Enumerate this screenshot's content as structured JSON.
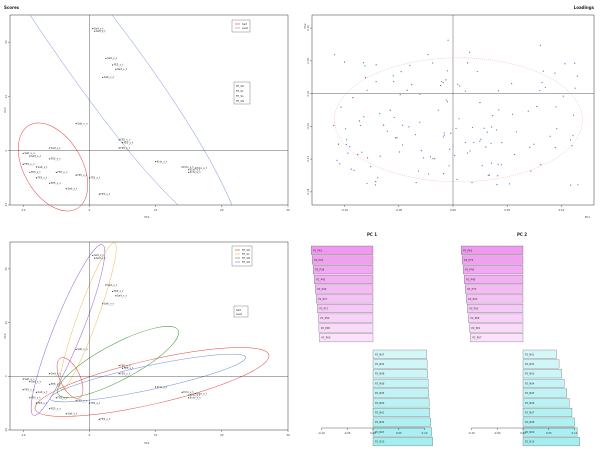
{
  "panels": {
    "scores": {
      "title": "Scores",
      "xlabel": "PC1",
      "ylabel": "PC2",
      "xticks": [
        "-10",
        "0",
        "10",
        "20",
        "30"
      ],
      "yticks": [
        "-10",
        "0",
        "10",
        "20"
      ],
      "legend_lines": [
        "Salt",
        "seed"
      ],
      "legend_points": [
        "FE_SD",
        "FE_SL",
        "FE_SL",
        "FE_SN"
      ]
    },
    "loadings": {
      "title": "Loadings",
      "xlabel": "PC1",
      "ylabel": "PC2",
      "xticks": [
        "-0.10",
        "-0.05",
        "0.00",
        "0.05",
        "0.10"
      ],
      "yticks": [
        "-0.15",
        "-0.10",
        "-0.05",
        "0.00",
        "0.05",
        "0.10"
      ]
    },
    "scores2": {
      "xlabel": "PC1",
      "ylabel": "PC2",
      "xticks": [
        "-10",
        "0",
        "10",
        "20",
        "30"
      ],
      "yticks": [
        "-10",
        "0",
        "10",
        "20"
      ],
      "legend_lines": [
        "FE_SD",
        "FE_SL",
        "FE_SN",
        "FE_SD"
      ],
      "legend_points": [
        "Salt",
        "seed"
      ]
    },
    "pc1_bars": {
      "title": "PC 1",
      "xticks": [
        "-0.10",
        "-0.05",
        "0.00",
        "0.05",
        "0.10"
      ]
    },
    "pc2_bars": {
      "title": "PC 2",
      "xticks": [
        "-0.10",
        "-0.05",
        "0.00",
        "0.05",
        "0.10"
      ]
    }
  },
  "colors": {
    "axis": "#333333",
    "red": "#e3413f",
    "blue": "#6f8fd8",
    "purple": "#9466d6",
    "orange": "#f0b85a",
    "green": "#3c9a3c",
    "label_blue": "#4f77d4",
    "label_red": "#c03535",
    "bar_pink": "#ee99ee",
    "bar_cyan": "#a4eef0"
  },
  "chart_data": [
    {
      "type": "scatter",
      "title": "Scores",
      "xlabel": "PC1",
      "ylabel": "PC2",
      "xlim": [
        -12,
        30
      ],
      "ylim": [
        -10,
        25
      ],
      "points": [
        {
          "x": 0.5,
          "y": 22.5,
          "label": "Salt_s_t"
        },
        {
          "x": 0.8,
          "y": 22.0,
          "label": "Salt_s_t"
        },
        {
          "x": 2.5,
          "y": 17.0,
          "label": "Salt_s_o"
        },
        {
          "x": 3.5,
          "y": 15.8,
          "label": "FE5_s_t"
        },
        {
          "x": 4.0,
          "y": 15.0,
          "label": "Salt_s_t"
        },
        {
          "x": 2.0,
          "y": 13.5,
          "label": "Salt_o_o"
        },
        {
          "x": -2.0,
          "y": 5.0,
          "label": "Salt_o_o"
        },
        {
          "x": 4.5,
          "y": 2.0,
          "label": "FE5_s_o"
        },
        {
          "x": 5.0,
          "y": 1.5,
          "label": "FE5_s_t"
        },
        {
          "x": 4.5,
          "y": 0.5,
          "label": "FE5_s_t"
        },
        {
          "x": -6.0,
          "y": 0.5,
          "label": "Salt_s_t"
        },
        {
          "x": -10.0,
          "y": -0.5,
          "label": "Salt_s_o"
        },
        {
          "x": -9.0,
          "y": -1.0,
          "label": "Salt_s_o"
        },
        {
          "x": -6.0,
          "y": -1.5,
          "label": "FE5_s_t"
        },
        {
          "x": -10.0,
          "y": -2.5,
          "label": "FE5_s_o"
        },
        {
          "x": -8.0,
          "y": -3.0,
          "label": "Salt_s_t"
        },
        {
          "x": -9.0,
          "y": -4.0,
          "label": "FE5_s_t"
        },
        {
          "x": -8.0,
          "y": -5.0,
          "label": "FE5_s_t"
        },
        {
          "x": -6.0,
          "y": -6.0,
          "label": "FE5_s_o"
        },
        {
          "x": -5.0,
          "y": -4.0,
          "label": "FE5_s_o"
        },
        {
          "x": -2.0,
          "y": -4.5,
          "label": "FE5_s_o"
        },
        {
          "x": -3.5,
          "y": -7.0,
          "label": "Salt_s_t"
        },
        {
          "x": 0.0,
          "y": -5.0,
          "label": "FE5_s_t"
        },
        {
          "x": 1.5,
          "y": -8.0,
          "label": "FE5_s_t"
        },
        {
          "x": 10.0,
          "y": -2.0,
          "label": "Ecto_s_t"
        },
        {
          "x": 14.0,
          "y": -3.0,
          "label": "Ecto_s_t"
        },
        {
          "x": 15.0,
          "y": -3.5,
          "label": "Ecto_s_t"
        },
        {
          "x": 16.0,
          "y": -3.2,
          "label": "Ecto_s_t"
        },
        {
          "x": 15.0,
          "y": -4.0,
          "label": "Ecto_s_o"
        }
      ]
    },
    {
      "type": "scatter",
      "title": "Loadings",
      "xlabel": "PC1",
      "ylabel": "PC2",
      "xlim": [
        -0.13,
        0.13
      ],
      "ylim": [
        -0.17,
        0.12
      ]
    },
    {
      "type": "bar",
      "title": "PC 1",
      "orientation": "horizontal",
      "categories": [
        "P2_P61",
        "P2_P44",
        "P2_P38",
        "P2_P45",
        "P2_P49",
        "P2_P27",
        "P2_P17",
        "P2_P50",
        "P2_P08",
        "P2_P04",
        "P2_N07",
        "P2_N02",
        "P2_N08",
        "P2_N06",
        "P2_N05",
        "P2_N09",
        "P2_N01",
        "P2_N04",
        "P2_N03",
        "P2_N10"
      ],
      "values": [
        -0.12,
        -0.118,
        -0.116,
        -0.114,
        -0.112,
        -0.11,
        -0.108,
        -0.106,
        -0.105,
        -0.104,
        0.104,
        0.105,
        0.106,
        0.107,
        0.108,
        0.109,
        0.11,
        0.112,
        0.114,
        0.116
      ],
      "xlim": [
        -0.13,
        0.13
      ]
    },
    {
      "type": "bar",
      "title": "PC 2",
      "orientation": "horizontal",
      "categories": [
        "P2_P63",
        "P2_P79",
        "P2_P40",
        "P2_P48",
        "P2_P73",
        "P2_P03",
        "P2_P05",
        "P2_P06",
        "P2_P01",
        "P2_P07",
        "P2_N01",
        "P2_N02",
        "P2_N03",
        "P2_N04",
        "P2_N05",
        "P2_N06",
        "P2_N07",
        "P2_N08",
        "P2_N09",
        "P2_N10"
      ],
      "values": [
        -0.12,
        -0.118,
        -0.116,
        -0.114,
        -0.112,
        -0.11,
        -0.108,
        -0.106,
        -0.104,
        -0.102,
        0.065,
        0.07,
        0.075,
        0.08,
        0.085,
        0.09,
        0.095,
        0.1,
        0.105,
        0.11
      ],
      "xlim": [
        -0.13,
        0.13
      ]
    }
  ]
}
